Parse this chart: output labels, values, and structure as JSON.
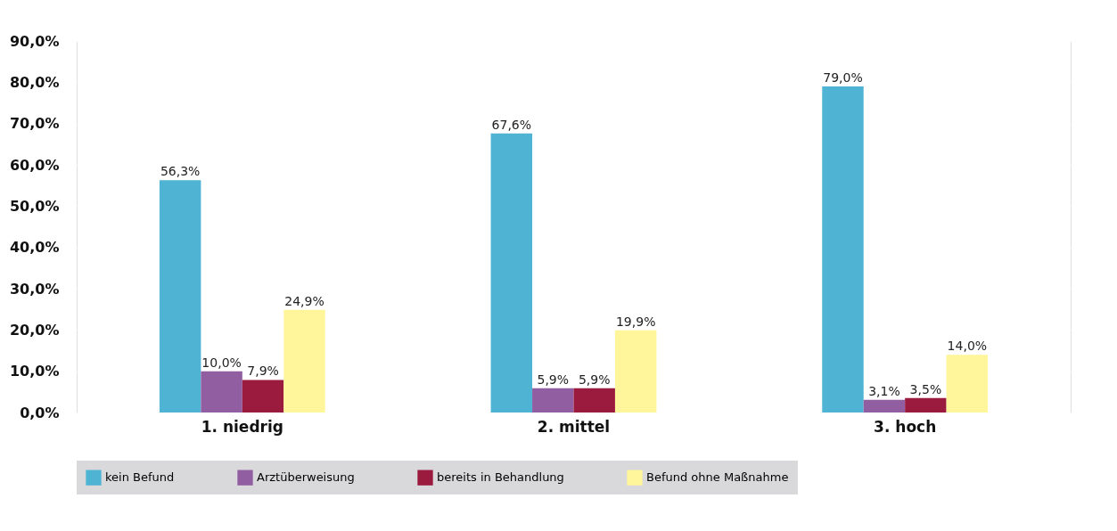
{
  "chart_data": {
    "type": "bar",
    "categories": [
      "1. niedrig",
      "2. mittel",
      "3. hoch"
    ],
    "series": [
      {
        "name": "kein Befund",
        "color": "#4fb3d3",
        "values": [
          56.3,
          67.6,
          79.0
        ],
        "value_labels": [
          "56,3%",
          "67,6%",
          "79,0%"
        ]
      },
      {
        "name": "Arztüberweisung",
        "color": "#915fa1",
        "values": [
          10.0,
          5.9,
          3.1
        ],
        "value_labels": [
          "10,0%",
          "5,9%",
          "3,1%"
        ]
      },
      {
        "name": "bereits in Behandlung",
        "color": "#9b1b3f",
        "values": [
          7.9,
          5.9,
          3.5
        ],
        "value_labels": [
          "7,9%",
          "5,9%",
          "3,5%"
        ]
      },
      {
        "name": "Befund ohne Maßnahme",
        "color": "#fff59b",
        "values": [
          24.9,
          19.9,
          14.0
        ],
        "value_labels": [
          "24,9%",
          "19,9%",
          "14,0%"
        ]
      }
    ],
    "ylim": [
      0,
      90
    ],
    "yticks": [
      {
        "value": 0,
        "label": "0,0%"
      },
      {
        "value": 10,
        "label": "10,0%"
      },
      {
        "value": 20,
        "label": "20,0%"
      },
      {
        "value": 30,
        "label": "30,0%"
      },
      {
        "value": 40,
        "label": "40,0%"
      },
      {
        "value": 50,
        "label": "50,0%"
      },
      {
        "value": 60,
        "label": "60,0%"
      },
      {
        "value": 70,
        "label": "70,0%"
      },
      {
        "value": 80,
        "label": "80,0%"
      },
      {
        "value": 90,
        "label": "90,0%"
      }
    ],
    "grid": "y",
    "legend": "bottom"
  }
}
